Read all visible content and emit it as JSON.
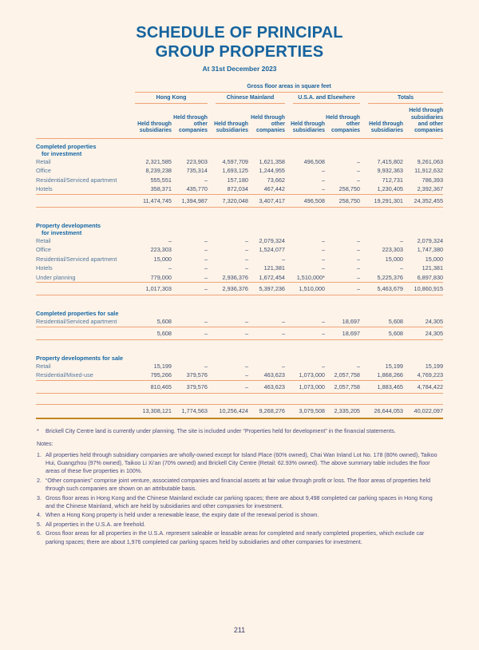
{
  "page": {
    "title_line1": "SCHEDULE OF PRINCIPAL",
    "title_line2": "GROUP PROPERTIES",
    "subtitle": "At 31st December 2023",
    "page_number": "211"
  },
  "colors": {
    "background": "#fdf3e8",
    "heading_blue": "#15639e",
    "rule_orange": "#f0a477",
    "grand_total_rule": "#c5861f",
    "number_navy": "#3d4d6e",
    "notes_indigo": "#474a80"
  },
  "table": {
    "units_header": "Gross floor areas in square feet",
    "groups": [
      {
        "label": "Hong Kong"
      },
      {
        "label": "Chinese Mainland"
      },
      {
        "label": "U.S.A. and Elsewhere"
      },
      {
        "label": "Totals"
      }
    ],
    "column_headers": [
      "Held through\nsubsidiaries",
      "Held through\nother\ncompanies",
      "Held through\nsubsidiaries",
      "Held through\nother\ncompanies",
      "Held through\nsubsidiaries",
      "Held through\nother\ncompanies",
      "Held through\nsubsidiaries",
      "Held through\nsubsidiaries\nand other\ncompanies"
    ],
    "sections": [
      {
        "heading": [
          "Completed properties",
          "for investment"
        ],
        "rows": [
          {
            "label": "Retail",
            "values": [
              "2,321,585",
              "223,903",
              "4,597,709",
              "1,621,358",
              "496,508",
              "–",
              "7,415,802",
              "9,261,063"
            ]
          },
          {
            "label": "Office",
            "values": [
              "8,239,238",
              "735,314",
              "1,693,125",
              "1,244,955",
              "–",
              "–",
              "9,932,363",
              "11,912,632"
            ]
          },
          {
            "label": "Residential/Serviced apartment",
            "values": [
              "555,551",
              "–",
              "157,180",
              "73,662",
              "–",
              "–",
              "712,731",
              "786,393"
            ]
          },
          {
            "label": "Hotels",
            "values": [
              "358,371",
              "435,770",
              "872,034",
              "467,442",
              "–",
              "258,750",
              "1,230,405",
              "2,392,367"
            ]
          }
        ],
        "total": [
          "11,474,745",
          "1,394,987",
          "7,320,048",
          "3,407,417",
          "496,508",
          "258,750",
          "19,291,301",
          "24,352,455"
        ]
      },
      {
        "heading": [
          "Property developments",
          "for investment"
        ],
        "rows": [
          {
            "label": "Retail",
            "values": [
              "–",
              "–",
              "–",
              "2,079,324",
              "–",
              "–",
              "–",
              "2,079,324"
            ]
          },
          {
            "label": "Office",
            "values": [
              "223,303",
              "–",
              "–",
              "1,524,077",
              "–",
              "–",
              "223,303",
              "1,747,380"
            ]
          },
          {
            "label": "Residential/Serviced apartment",
            "values": [
              "15,000",
              "–",
              "–",
              "–",
              "–",
              "–",
              "15,000",
              "15,000"
            ]
          },
          {
            "label": "Hotels",
            "values": [
              "–",
              "–",
              "–",
              "121,381",
              "–",
              "–",
              "–",
              "121,381"
            ]
          },
          {
            "label": "Under planning",
            "values": [
              "779,000",
              "–",
              "2,936,376",
              "1,672,454",
              "1,510,000*",
              "–",
              "5,225,376",
              "6,897,830"
            ]
          }
        ],
        "total": [
          "1,017,303",
          "–",
          "2,936,376",
          "5,397,236",
          "1,510,000",
          "–",
          "5,463,679",
          "10,860,915"
        ]
      },
      {
        "heading": [
          "Completed properties for sale"
        ],
        "rows": [
          {
            "label": "Residential/Serviced apartment",
            "values": [
              "5,608",
              "–",
              "–",
              "–",
              "–",
              "18,697",
              "5,608",
              "24,305"
            ]
          }
        ],
        "total": [
          "5,608",
          "–",
          "–",
          "–",
          "–",
          "18,697",
          "5,608",
          "24,305"
        ]
      },
      {
        "heading": [
          "Property developments for sale"
        ],
        "rows": [
          {
            "label": "Retail",
            "values": [
              "15,199",
              "–",
              "–",
              "–",
              "–",
              "–",
              "15,199",
              "15,199"
            ]
          },
          {
            "label": "Residential/Mixed-use",
            "values": [
              "795,266",
              "379,576",
              "–",
              "463,623",
              "1,073,000",
              "2,057,758",
              "1,868,266",
              "4,769,223"
            ]
          }
        ],
        "total": [
          "810,465",
          "379,576",
          "–",
          "463,623",
          "1,073,000",
          "2,057,758",
          "1,883,465",
          "4,784,422"
        ]
      }
    ],
    "grand_total": [
      "13,308,121",
      "1,774,563",
      "10,256,424",
      "9,268,276",
      "3,079,508",
      "2,335,205",
      "26,644,053",
      "40,022,097"
    ]
  },
  "footnote": {
    "marker": "*",
    "text": "Brickell City Centre land is currently under planning. The site is included under “Properties held for development” in the financial statements."
  },
  "notes": {
    "title": "Notes:",
    "items": [
      "All properties held through subsidiary companies are wholly-owned except for Island Place (60% owned), Chai Wan Inland Lot No. 178 (80% owned), Taikoo Hui, Guangzhou (97% owned), Taikoo Li Xi’an (70% owned) and Brickell City Centre (Retail: 62.93% owned). The above summary table includes the floor areas of these five properties in 100%.",
      "“Other companies” comprise joint venture, associated companies and financial assets at fair value through profit or loss. The floor areas of properties held through such companies are shown on an attributable basis.",
      "Gross floor areas in Hong Kong and the Chinese Mainland exclude car parking spaces; there are about 9,498 completed car parking spaces in Hong Kong and the Chinese Mainland, which are held by subsidiaries and other companies for investment.",
      "When a Hong Kong property is held under a renewable lease, the expiry date of the renewal period is shown.",
      "All properties in the U.S.A. are freehold.",
      "Gross floor areas for all properties in the U.S.A. represent saleable or leasable areas for completed and nearly completed properties, which exclude car parking spaces; there are about 1,976 completed car parking spaces held by subsidiaries and other companies for investment."
    ]
  }
}
